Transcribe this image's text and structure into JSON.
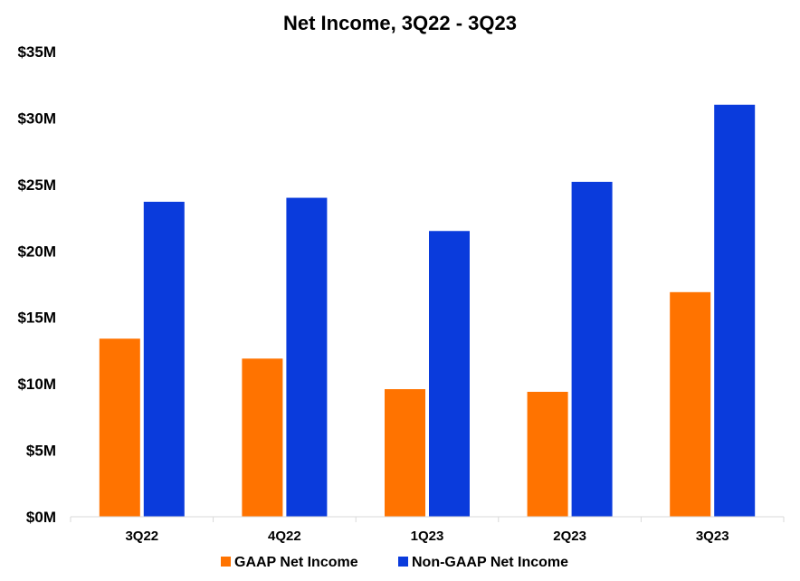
{
  "chart_data": {
    "type": "bar",
    "title": "Net Income, 3Q22 - 3Q23",
    "xlabel": "",
    "ylabel": "",
    "categories": [
      "3Q22",
      "4Q22",
      "1Q23",
      "2Q23",
      "3Q23"
    ],
    "series": [
      {
        "name": "GAAP Net Income",
        "color": "#ff7300",
        "values": [
          13.4,
          11.9,
          9.6,
          9.4,
          16.9
        ]
      },
      {
        "name": "Non-GAAP Net Income",
        "color": "#0a3bdc",
        "values": [
          23.7,
          24.0,
          21.5,
          25.2,
          31.0
        ]
      }
    ],
    "ylim": [
      0,
      35
    ],
    "yticks": [
      0,
      5,
      10,
      15,
      20,
      25,
      30,
      35
    ],
    "ytick_labels": [
      "$0M",
      "$5M",
      "$10M",
      "$15M",
      "$20M",
      "$25M",
      "$30M",
      "$35M"
    ],
    "grid": false,
    "legend_position": "bottom"
  }
}
